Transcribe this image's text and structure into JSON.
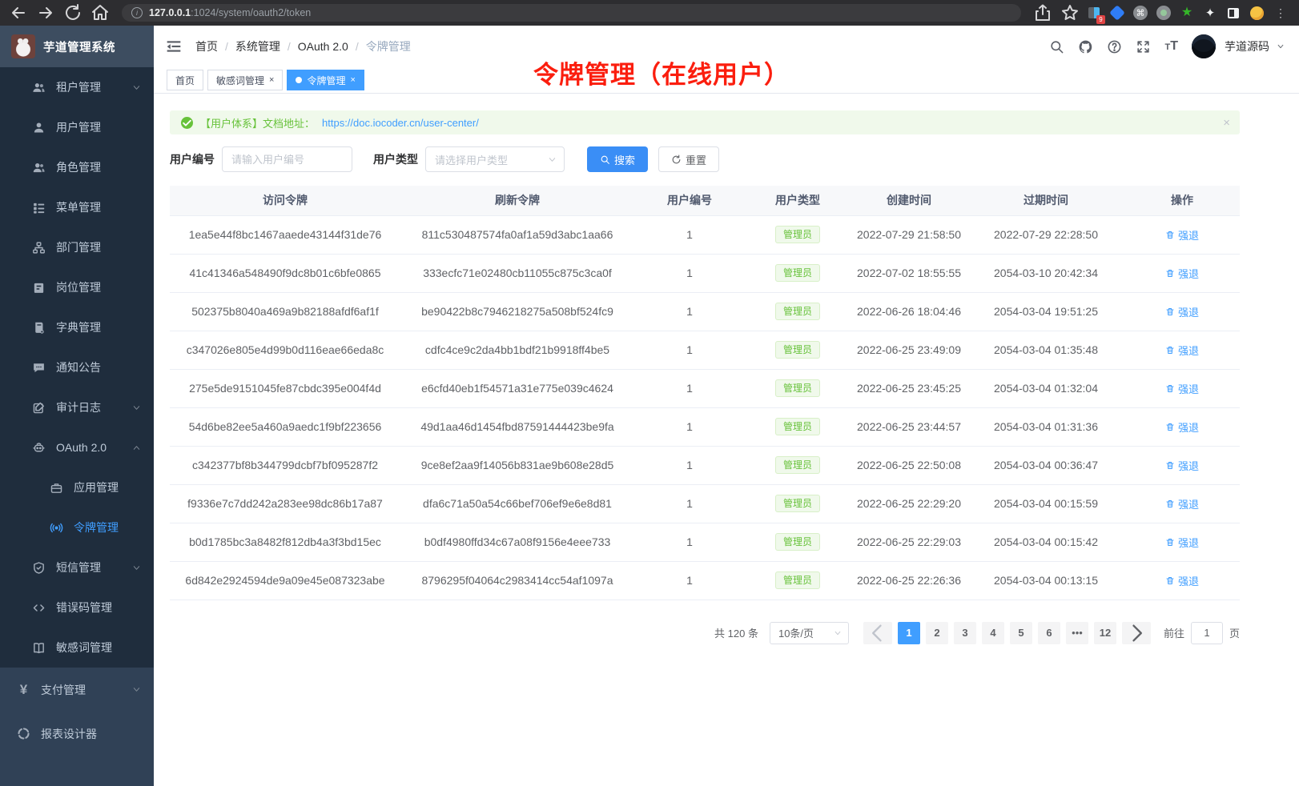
{
  "browser": {
    "url_host": "127.0.0.1",
    "url_rest": ":1024/system/oauth2/token",
    "extension_badge": "9"
  },
  "sidebar": {
    "logo_title": "芋道管理系统",
    "items": [
      {
        "label": "租户管理",
        "icon": "tenant-users-icon",
        "level": "sub",
        "chevron": "down"
      },
      {
        "label": "用户管理",
        "icon": "user-icon",
        "level": "sub"
      },
      {
        "label": "角色管理",
        "icon": "roles-icon",
        "level": "sub"
      },
      {
        "label": "菜单管理",
        "icon": "menu-tree-icon",
        "level": "sub"
      },
      {
        "label": "部门管理",
        "icon": "org-chart-icon",
        "level": "sub"
      },
      {
        "label": "岗位管理",
        "icon": "post-badge-icon",
        "level": "sub"
      },
      {
        "label": "字典管理",
        "icon": "dictionary-icon",
        "level": "sub"
      },
      {
        "label": "通知公告",
        "icon": "notice-bubble-icon",
        "level": "sub"
      },
      {
        "label": "审计日志",
        "icon": "audit-log-icon",
        "level": "sub",
        "chevron": "down"
      },
      {
        "label": "OAuth 2.0",
        "icon": "oauth-robot-icon",
        "level": "sub",
        "chevron": "up"
      },
      {
        "label": "应用管理",
        "icon": "app-briefcase-icon",
        "level": "nested"
      },
      {
        "label": "令牌管理",
        "icon": "token-signal-icon",
        "level": "nested",
        "active": true
      },
      {
        "label": "短信管理",
        "icon": "sms-shield-icon",
        "level": "sub",
        "chevron": "down"
      },
      {
        "label": "错误码管理",
        "icon": "error-code-icon",
        "level": "sub"
      },
      {
        "label": "敏感词管理",
        "icon": "sensitive-book-icon",
        "level": "sub"
      },
      {
        "label": "支付管理",
        "icon": "pay-yen-icon",
        "level": "root",
        "chevron": "down"
      },
      {
        "label": "报表设计器",
        "icon": "report-designer-icon",
        "level": "root"
      }
    ]
  },
  "header": {
    "breadcrumb": [
      "首页",
      "系统管理",
      "OAuth 2.0",
      "令牌管理"
    ],
    "username": "芋道源码"
  },
  "tabs": [
    {
      "label": "首页",
      "closable": false,
      "active": false
    },
    {
      "label": "敏感词管理",
      "closable": true,
      "active": false
    },
    {
      "label": "令牌管理",
      "closable": true,
      "active": true
    }
  ],
  "annotation": "令牌管理（在线用户）",
  "alert": {
    "prefix": "【用户体系】文档地址：",
    "link": "https://doc.iocoder.cn/user-center/",
    "close_glyph": "×"
  },
  "filter": {
    "user_id_label": "用户编号",
    "user_id_placeholder": "请输入用户编号",
    "user_type_label": "用户类型",
    "user_type_placeholder": "请选择用户类型",
    "search_label": "搜索",
    "reset_label": "重置"
  },
  "table": {
    "columns": [
      "访问令牌",
      "刷新令牌",
      "用户编号",
      "用户类型",
      "创建时间",
      "过期时间",
      "操作"
    ],
    "action_label": "强退",
    "rows": [
      {
        "access_token": "1ea5e44f8bc1467aaede43144f31de76",
        "refresh_token": "811c530487574fa0af1a59d3abc1aa66",
        "user_id": "1",
        "user_type": "管理员",
        "create_time": "2022-07-29 21:58:50",
        "expire_time": "2022-07-29 22:28:50"
      },
      {
        "access_token": "41c41346a548490f9dc8b01c6bfe0865",
        "refresh_token": "333ecfc71e02480cb11055c875c3ca0f",
        "user_id": "1",
        "user_type": "管理员",
        "create_time": "2022-07-02 18:55:55",
        "expire_time": "2054-03-10 20:42:34"
      },
      {
        "access_token": "502375b8040a469a9b82188afdf6af1f",
        "refresh_token": "be90422b8c7946218275a508bf524fc9",
        "user_id": "1",
        "user_type": "管理员",
        "create_time": "2022-06-26 18:04:46",
        "expire_time": "2054-03-04 19:51:25"
      },
      {
        "access_token": "c347026e805e4d99b0d116eae66eda8c",
        "refresh_token": "cdfc4ce9c2da4bb1bdf21b9918ff4be5",
        "user_id": "1",
        "user_type": "管理员",
        "create_time": "2022-06-25 23:49:09",
        "expire_time": "2054-03-04 01:35:48"
      },
      {
        "access_token": "275e5de9151045fe87cbdc395e004f4d",
        "refresh_token": "e6cfd40eb1f54571a31e775e039c4624",
        "user_id": "1",
        "user_type": "管理员",
        "create_time": "2022-06-25 23:45:25",
        "expire_time": "2054-03-04 01:32:04"
      },
      {
        "access_token": "54d6be82ee5a460a9aedc1f9bf223656",
        "refresh_token": "49d1aa46d1454fbd87591444423be9fa",
        "user_id": "1",
        "user_type": "管理员",
        "create_time": "2022-06-25 23:44:57",
        "expire_time": "2054-03-04 01:31:36"
      },
      {
        "access_token": "c342377bf8b344799dcbf7bf095287f2",
        "refresh_token": "9ce8ef2aa9f14056b831ae9b608e28d5",
        "user_id": "1",
        "user_type": "管理员",
        "create_time": "2022-06-25 22:50:08",
        "expire_time": "2054-03-04 00:36:47"
      },
      {
        "access_token": "f9336e7c7dd242a283ee98dc86b17a87",
        "refresh_token": "dfa6c71a50a54c66bef706ef9e6e8d81",
        "user_id": "1",
        "user_type": "管理员",
        "create_time": "2022-06-25 22:29:20",
        "expire_time": "2054-03-04 00:15:59"
      },
      {
        "access_token": "b0d1785bc3a8482f812db4a3f3bd15ec",
        "refresh_token": "b0df4980ffd34c67a08f9156e4eee733",
        "user_id": "1",
        "user_type": "管理员",
        "create_time": "2022-06-25 22:29:03",
        "expire_time": "2054-03-04 00:15:42"
      },
      {
        "access_token": "6d842e2924594de9a09e45e087323abe",
        "refresh_token": "8796295f04064c2983414cc54af1097a",
        "user_id": "1",
        "user_type": "管理员",
        "create_time": "2022-06-25 22:26:36",
        "expire_time": "2054-03-04 00:13:15"
      }
    ]
  },
  "pagination": {
    "total_label": "共 120 条",
    "page_size": "10条/页",
    "pages": [
      "1",
      "2",
      "3",
      "4",
      "5",
      "6",
      "•••",
      "12"
    ],
    "active_page": "1",
    "goto_label": "前往",
    "goto_value": "1",
    "goto_suffix": "页"
  },
  "colors": {
    "accent": "#409eff",
    "success": "#67c23a",
    "annotation_red": "#fb1e0e",
    "sidebar_dark": "#1f2d3d",
    "sidebar_root": "#304156"
  }
}
